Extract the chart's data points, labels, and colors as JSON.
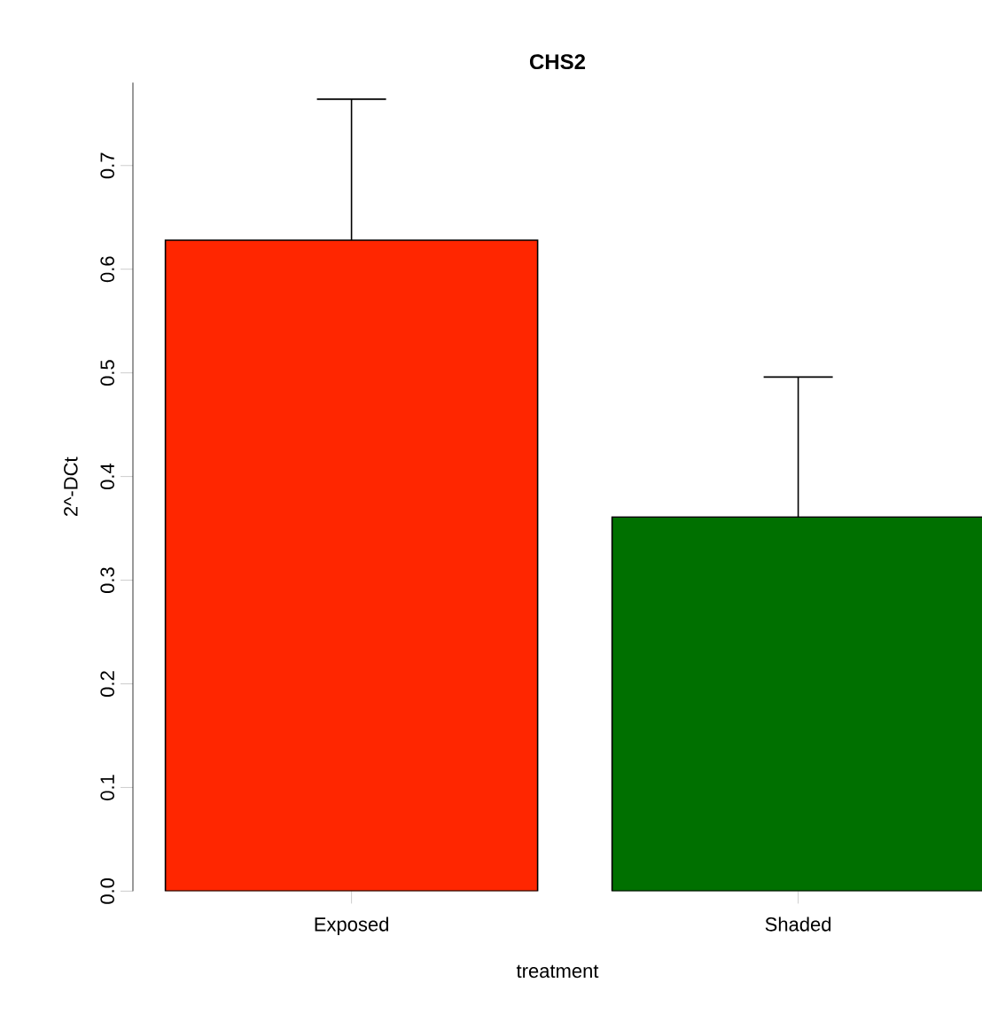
{
  "chart_data": {
    "type": "bar",
    "title": "CHS2",
    "xlabel": "treatment",
    "ylabel": "2^-DCt",
    "categories": [
      "Exposed",
      "Shaded"
    ],
    "values": [
      0.628,
      0.361
    ],
    "colors": [
      "#ff2600",
      "#007000"
    ],
    "errors": [
      [
        0.628,
        0.764
      ],
      [
        0.361,
        0.496
      ]
    ],
    "ylim": [
      0,
      0.78
    ],
    "yticks": [
      {
        "value": 0,
        "label": "0.0"
      },
      0.1,
      0.2,
      0.3,
      0.4,
      0.5,
      0.6,
      0.7
    ],
    "grid": false
  }
}
